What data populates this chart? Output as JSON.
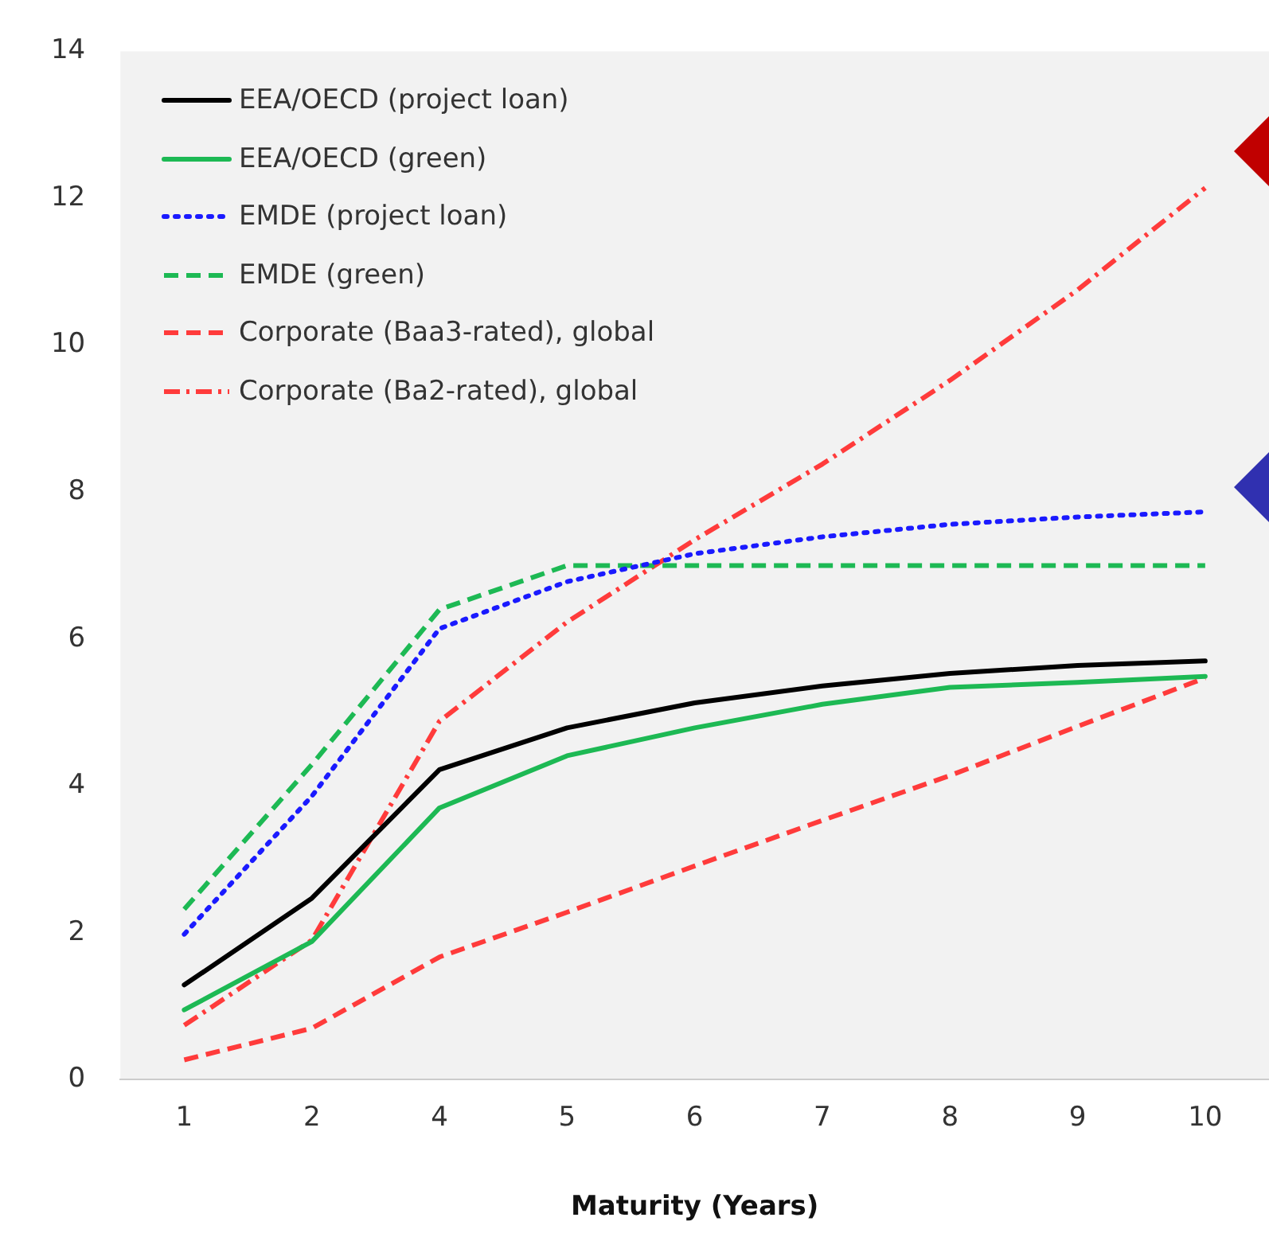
{
  "chart_data": {
    "type": "line",
    "xlabel": "Maturity (Years)",
    "categories": [
      "1",
      "2",
      "4",
      "5",
      "6",
      "7",
      "8",
      "9",
      "10"
    ],
    "ylim": [
      0,
      14
    ],
    "yticks": [
      0,
      2,
      4,
      6,
      8,
      10,
      12,
      14
    ],
    "grid": false,
    "legend": "top left",
    "marker": "none",
    "series": [
      {
        "name": "EEA/OECD (project loan)",
        "color": "#000000",
        "line_style": "solid",
        "values": [
          1.29,
          2.47,
          4.22,
          4.79,
          5.13,
          5.36,
          5.53,
          5.64,
          5.7
        ]
      },
      {
        "name": "EEA/OECD (green)",
        "color": "#1db954",
        "line_style": "solid",
        "values": [
          0.95,
          1.88,
          3.7,
          4.41,
          4.79,
          5.11,
          5.34,
          5.41,
          5.49
        ]
      },
      {
        "name": "EMDE (project loan)",
        "color": "#1a1aff",
        "line_style": "dotted",
        "values": [
          1.98,
          3.86,
          6.14,
          6.78,
          7.16,
          7.39,
          7.56,
          7.66,
          7.73
        ]
      },
      {
        "name": "EMDE (green)",
        "color": "#1db954",
        "line_style": "dashed",
        "values": [
          2.32,
          4.29,
          6.4,
          7.0,
          7.0,
          7.0,
          7.0,
          7.0,
          7.0
        ]
      },
      {
        "name": "Corporate (Baa3-rated), global",
        "color": "#ff3b3b",
        "line_style": "dashed",
        "values": [
          0.27,
          0.7,
          1.67,
          2.28,
          2.91,
          3.53,
          4.14,
          4.81,
          5.47
        ]
      },
      {
        "name": "Corporate (Ba2-rated), global",
        "color": "#ff3b3b",
        "line_style": "dashdot",
        "values": [
          0.74,
          1.9,
          4.88,
          6.23,
          7.35,
          8.38,
          9.52,
          10.75,
          12.14
        ]
      }
    ]
  }
}
